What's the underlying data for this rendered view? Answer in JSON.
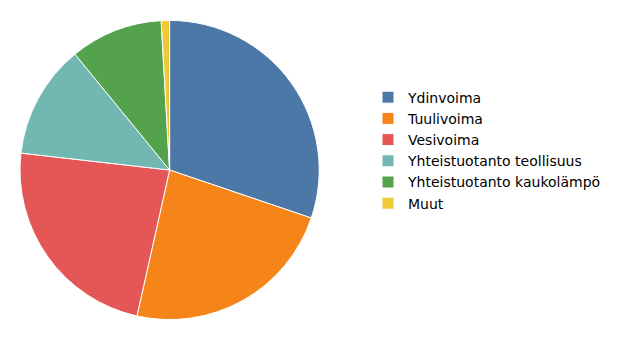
{
  "chart_data": {
    "type": "pie",
    "categories": [
      "Ydinvoima",
      "Tuulivoima",
      "Vesivoima",
      "Yhteistuotanto teollisuus",
      "Yhteistuotanto kaukolämpö",
      "Muut"
    ],
    "values": [
      30.2,
      23.3,
      23.3,
      12.3,
      10.0,
      0.9
    ],
    "colors": [
      "#4c78a8",
      "#f58518",
      "#e45756",
      "#72b7b2",
      "#54a24b",
      "#eeca3b"
    ],
    "legend": "right",
    "data_labels": false
  }
}
